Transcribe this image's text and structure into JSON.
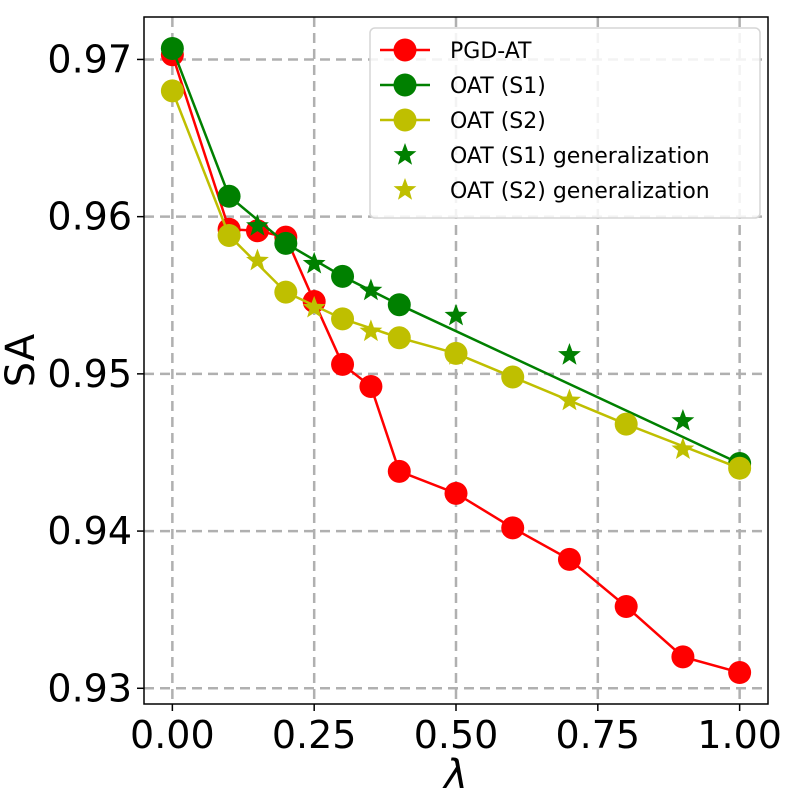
{
  "chart_data": {
    "type": "line",
    "title": "",
    "xlabel": "λ",
    "ylabel": "SA",
    "xlim": [
      -0.05,
      1.05
    ],
    "ylim": [
      0.929,
      0.9727
    ],
    "xticks": [
      0.0,
      0.25,
      0.5,
      0.75,
      1.0
    ],
    "xtick_labels": [
      "0.00",
      "0.25",
      "0.50",
      "0.75",
      "1.00"
    ],
    "yticks": [
      0.93,
      0.94,
      0.95,
      0.96,
      0.97
    ],
    "ytick_labels": [
      "0.93",
      "0.94",
      "0.95",
      "0.96",
      "0.97"
    ],
    "grid": true,
    "legend_position": "top-right",
    "series": [
      {
        "name": "PGD-AT",
        "kind": "line",
        "marker": "circle",
        "color": "#ff0000",
        "x": [
          0.0,
          0.1,
          0.15,
          0.2,
          0.25,
          0.3,
          0.35,
          0.4,
          0.5,
          0.6,
          0.7,
          0.8,
          0.9,
          1.0
        ],
        "y": [
          0.9703,
          0.9592,
          0.9591,
          0.9587,
          0.9546,
          0.9506,
          0.9492,
          0.9438,
          0.9424,
          0.9402,
          0.9382,
          0.9352,
          0.932,
          0.931
        ]
      },
      {
        "name": "OAT (S1)",
        "kind": "line",
        "marker": "circle",
        "color": "#008000",
        "x": [
          0.0,
          0.1,
          0.2,
          0.3,
          0.4,
          1.0
        ],
        "y": [
          0.9707,
          0.9613,
          0.9583,
          0.9562,
          0.9544,
          0.9443
        ]
      },
      {
        "name": "OAT (S2)",
        "kind": "line",
        "marker": "circle",
        "color": "#bfbf00",
        "x": [
          0.0,
          0.1,
          0.2,
          0.3,
          0.4,
          0.5,
          0.6,
          0.8,
          1.0
        ],
        "y": [
          0.968,
          0.9588,
          0.9552,
          0.9535,
          0.9523,
          0.9513,
          0.9498,
          0.9468,
          0.944
        ]
      },
      {
        "name": "OAT (S1) generalization",
        "kind": "scatter",
        "marker": "star",
        "color": "#008000",
        "x": [
          0.15,
          0.25,
          0.35,
          0.5,
          0.7,
          0.9
        ],
        "y": [
          0.9594,
          0.957,
          0.9553,
          0.9537,
          0.9512,
          0.947
        ]
      },
      {
        "name": "OAT (S2) generalization",
        "kind": "scatter",
        "marker": "star",
        "color": "#bfbf00",
        "x": [
          0.15,
          0.25,
          0.35,
          0.5,
          0.7,
          0.9
        ],
        "y": [
          0.9572,
          0.9542,
          0.9527,
          0.9512,
          0.9483,
          0.9452
        ]
      }
    ]
  }
}
